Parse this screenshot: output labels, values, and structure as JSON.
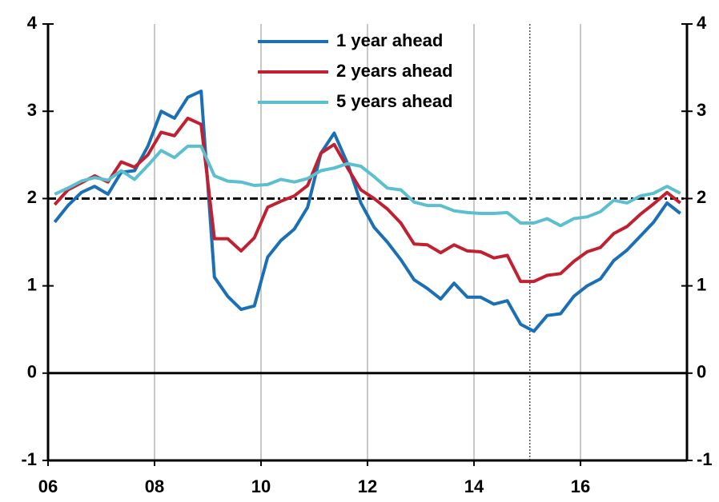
{
  "chart_data": {
    "type": "line",
    "x": [
      2006.125,
      2006.375,
      2006.625,
      2006.875,
      2007.125,
      2007.375,
      2007.625,
      2007.875,
      2008.125,
      2008.375,
      2008.625,
      2008.875,
      2009.125,
      2009.375,
      2009.625,
      2009.875,
      2010.125,
      2010.375,
      2010.625,
      2010.875,
      2011.125,
      2011.375,
      2011.625,
      2011.875,
      2012.125,
      2012.375,
      2012.625,
      2012.875,
      2013.125,
      2013.375,
      2013.625,
      2013.875,
      2014.125,
      2014.375,
      2014.625,
      2014.875,
      2015.125,
      2015.375,
      2015.625,
      2015.875,
      2016.125,
      2016.375,
      2016.625,
      2016.875,
      2017.125,
      2017.375,
      2017.625,
      2017.875
    ],
    "series": [
      {
        "name": "1 year ahead",
        "color": "#1a6fb5",
        "values": [
          1.73,
          1.92,
          2.07,
          2.14,
          2.05,
          2.3,
          2.32,
          2.6,
          3.0,
          2.92,
          3.16,
          3.23,
          1.1,
          0.88,
          0.73,
          0.77,
          1.33,
          1.52,
          1.65,
          1.9,
          2.52,
          2.75,
          2.4,
          1.95,
          1.67,
          1.5,
          1.3,
          1.07,
          0.97,
          0.85,
          1.03,
          0.87,
          0.87,
          0.79,
          0.83,
          0.56,
          0.48,
          0.66,
          0.68,
          0.88,
          1.0,
          1.08,
          1.29,
          1.41,
          1.57,
          1.73,
          1.95,
          1.83
        ]
      },
      {
        "name": "2 years ahead",
        "color": "#c0202f",
        "values": [
          1.93,
          2.1,
          2.18,
          2.26,
          2.19,
          2.42,
          2.36,
          2.5,
          2.76,
          2.72,
          2.92,
          2.85,
          1.54,
          1.54,
          1.4,
          1.55,
          1.9,
          1.97,
          2.03,
          2.15,
          2.52,
          2.62,
          2.35,
          2.1,
          2.0,
          1.88,
          1.72,
          1.48,
          1.47,
          1.38,
          1.47,
          1.4,
          1.39,
          1.32,
          1.35,
          1.05,
          1.05,
          1.12,
          1.14,
          1.28,
          1.39,
          1.44,
          1.6,
          1.68,
          1.82,
          1.94,
          2.07,
          1.95
        ]
      },
      {
        "name": "5 years ahead",
        "color": "#5bbfcf",
        "values": [
          2.05,
          2.12,
          2.2,
          2.24,
          2.21,
          2.32,
          2.22,
          2.38,
          2.55,
          2.47,
          2.6,
          2.6,
          2.26,
          2.2,
          2.19,
          2.15,
          2.16,
          2.22,
          2.19,
          2.23,
          2.32,
          2.35,
          2.4,
          2.37,
          2.25,
          2.12,
          2.1,
          1.96,
          1.92,
          1.92,
          1.86,
          1.84,
          1.83,
          1.83,
          1.84,
          1.72,
          1.72,
          1.77,
          1.69,
          1.77,
          1.79,
          1.85,
          1.98,
          1.95,
          2.03,
          2.06,
          2.14,
          2.06
        ]
      }
    ],
    "xlim": [
      2006,
      2018
    ],
    "xticks": [
      {
        "value": 2006,
        "label": "06"
      },
      {
        "value": 2008,
        "label": "08"
      },
      {
        "value": 2010,
        "label": "10"
      },
      {
        "value": 2012,
        "label": "12"
      },
      {
        "value": 2014,
        "label": "14"
      },
      {
        "value": 2016,
        "label": "16"
      }
    ],
    "ylim": [
      -1,
      4
    ],
    "yticks": [
      -1,
      0,
      1,
      2,
      3,
      4
    ],
    "y2lim": [
      -1,
      4
    ],
    "y2ticks": [
      -1,
      0,
      1,
      2,
      3,
      4
    ],
    "reference_line": 2,
    "vline": 2015.05,
    "grid": true,
    "legend": "top"
  }
}
